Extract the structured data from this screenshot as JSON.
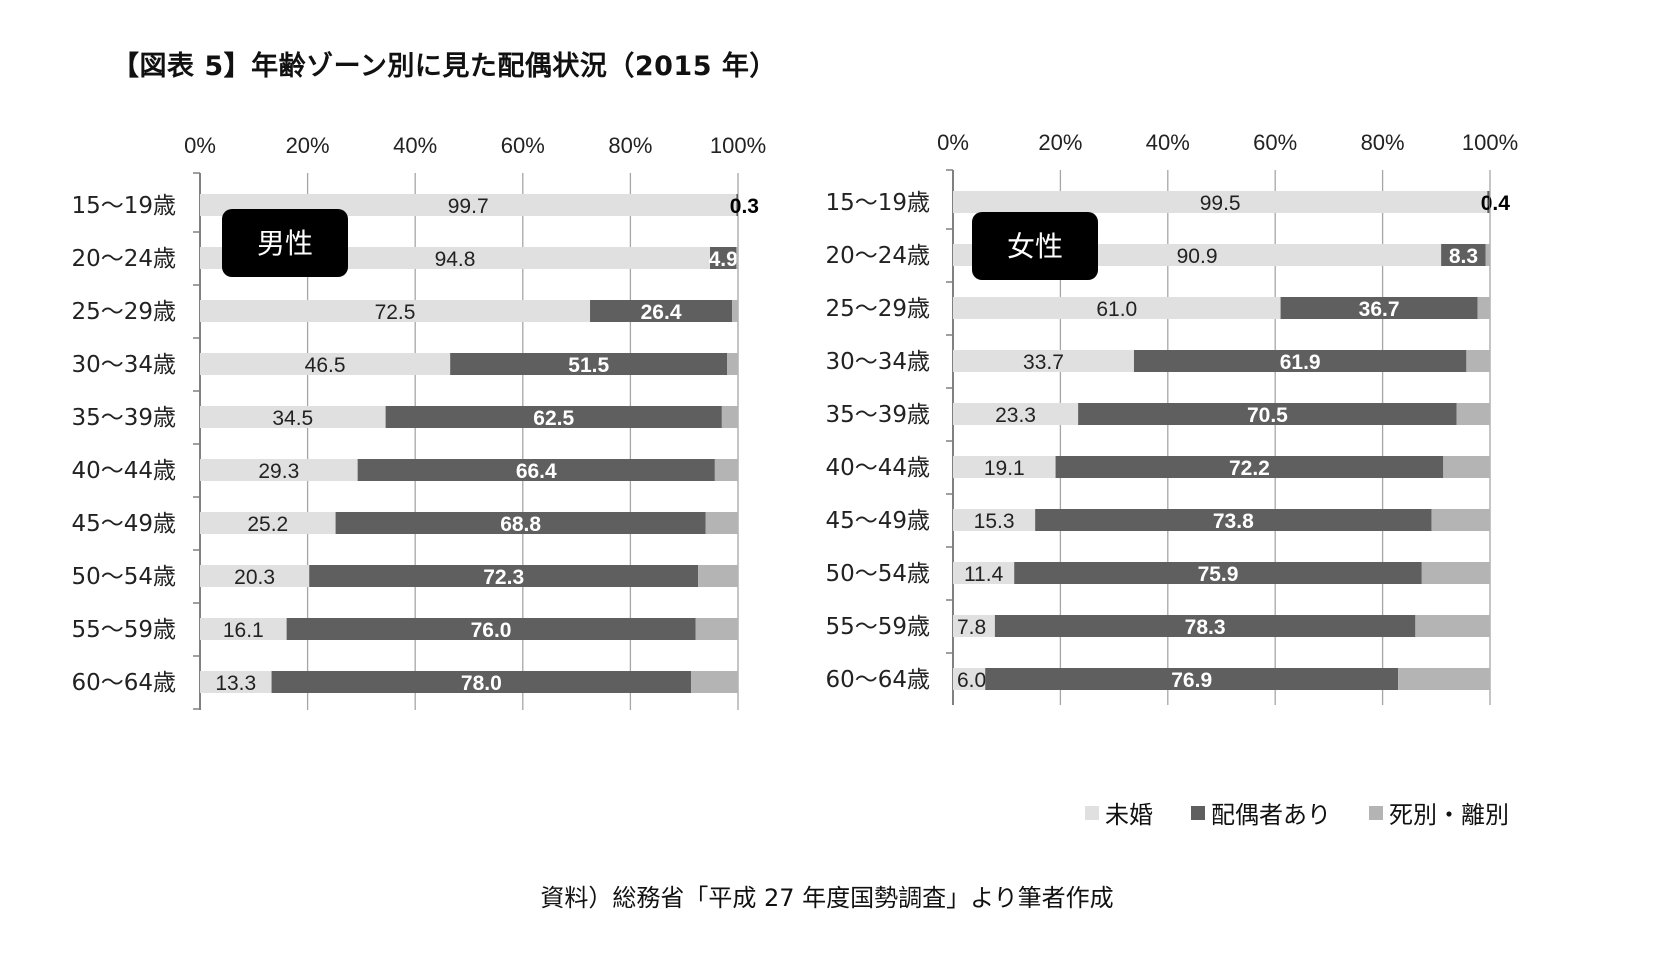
{
  "title": "【図表 5】年齢ゾーン別に見た配偶状況（2015 年）",
  "source": "資料）総務省「平成 27 年度国勢調査」より筆者作成",
  "legend": [
    {
      "label": "未婚",
      "color": "#e0e0e0"
    },
    {
      "label": "配偶者あり",
      "color": "#5f5f5f"
    },
    {
      "label": "死別・離別",
      "color": "#b4b4b4"
    }
  ],
  "chart_data": [
    {
      "type": "bar",
      "orientation": "horizontal",
      "stacked": true,
      "panel_label": "男性",
      "xlim": [
        0,
        100
      ],
      "x_ticks": [
        "0%",
        "20%",
        "40%",
        "60%",
        "80%",
        "100%"
      ],
      "categories": [
        "15〜19歳",
        "20〜24歳",
        "25〜29歳",
        "30〜34歳",
        "35〜39歳",
        "40〜44歳",
        "45〜49歳",
        "50〜54歳",
        "55〜59歳",
        "60〜64歳"
      ],
      "series": [
        {
          "name": "未婚",
          "values": [
            99.7,
            94.8,
            72.5,
            46.5,
            34.5,
            29.3,
            25.2,
            20.3,
            16.1,
            13.3
          ],
          "labels": [
            "99.7",
            "94.8",
            "72.5",
            "46.5",
            "34.5",
            "29.3",
            "25.2",
            "20.3",
            "16.1",
            "13.3"
          ]
        },
        {
          "name": "配偶者あり",
          "values": [
            0.3,
            4.9,
            26.4,
            51.5,
            62.5,
            66.4,
            68.8,
            72.3,
            76.0,
            78.0
          ],
          "labels": [
            "0.3",
            "4.9",
            "26.4",
            "51.5",
            "62.5",
            "66.4",
            "68.8",
            "72.3",
            "76.0",
            "78.0"
          ]
        },
        {
          "name": "死別・離別",
          "values": [
            0.0,
            0.3,
            1.1,
            2.0,
            3.0,
            4.3,
            6.0,
            7.4,
            7.9,
            8.7
          ]
        }
      ]
    },
    {
      "type": "bar",
      "orientation": "horizontal",
      "stacked": true,
      "panel_label": "女性",
      "xlim": [
        0,
        100
      ],
      "x_ticks": [
        "0%",
        "20%",
        "40%",
        "60%",
        "80%",
        "100%"
      ],
      "categories": [
        "15〜19歳",
        "20〜24歳",
        "25〜29歳",
        "30〜34歳",
        "35〜39歳",
        "40〜44歳",
        "45〜49歳",
        "50〜54歳",
        "55〜59歳",
        "60〜64歳"
      ],
      "series": [
        {
          "name": "未婚",
          "values": [
            99.5,
            90.9,
            61.0,
            33.7,
            23.3,
            19.1,
            15.3,
            11.4,
            7.8,
            6.0
          ],
          "labels": [
            "99.5",
            "90.9",
            "61.0",
            "33.7",
            "23.3",
            "19.1",
            "15.3",
            "11.4",
            "7.8",
            "6.0"
          ]
        },
        {
          "name": "配偶者あり",
          "values": [
            0.4,
            8.3,
            36.7,
            61.9,
            70.5,
            72.2,
            73.8,
            75.9,
            78.3,
            76.9
          ],
          "labels": [
            "0.4",
            "8.3",
            "36.7",
            "61.9",
            "70.5",
            "72.2",
            "73.8",
            "75.9",
            "78.3",
            "76.9"
          ]
        },
        {
          "name": "死別・離別",
          "values": [
            0.1,
            0.8,
            2.3,
            4.4,
            6.2,
            8.7,
            10.9,
            12.7,
            13.9,
            17.1
          ]
        }
      ]
    }
  ]
}
